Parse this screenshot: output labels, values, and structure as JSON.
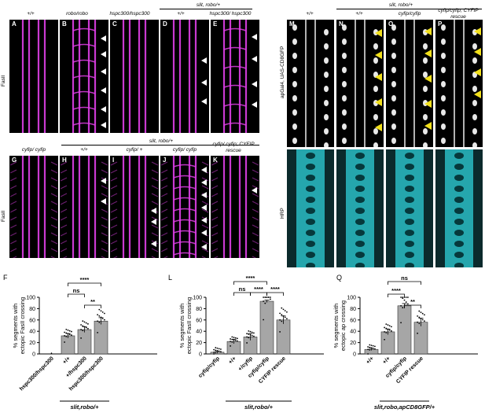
{
  "fig": {
    "top_left": {
      "header_slit_robo": "slit, robo/+",
      "cols": [
        "+/+",
        "robo/robo",
        "hspc300/hspc300",
        "+/+",
        "hspc300/ hspc300"
      ],
      "letters": [
        "A",
        "B",
        "C",
        "D",
        "E"
      ],
      "side_label": "FasII"
    },
    "mid_left": {
      "header_slit_robo": "slit, robo/+",
      "cols": [
        "cyfip/ cyfip",
        "+/+",
        "cyfip/ +",
        "cyfip/ cyfip",
        "cyfip/ cyfip; CYFIP rescue"
      ],
      "letters": [
        "G",
        "H",
        "I",
        "J",
        "K"
      ],
      "side_label": "FasII"
    },
    "right": {
      "header_slit_robo": "slit, robo/+",
      "cols": [
        "+/+",
        "+/+",
        "cyfip/cyfip",
        "cyfip/cyfip; CYFIP rescue"
      ],
      "letters": [
        "M",
        "N",
        "O",
        "P"
      ],
      "side_label_top": "apGal4, UAS-CD8GFP",
      "side_label_bottom": "HRP"
    },
    "colors": {
      "magenta": "#e040e8",
      "cyan": "#2fd0d8",
      "arrow_yellow": "#f2e01b",
      "bar_fill": "#a6a6a6"
    }
  },
  "chart_data": [
    {
      "panel": "F",
      "type": "bar",
      "ylabel": "% segments with ectopic FasII crossing",
      "ylim": [
        0,
        100
      ],
      "yticks": [
        0,
        20,
        40,
        60,
        80,
        100
      ],
      "categories": [
        "hspc300/hspc300",
        "+/+",
        "+/hspc300",
        "hspc300/hspc300"
      ],
      "values": [
        0,
        32,
        43,
        58
      ],
      "errors": [
        0,
        4,
        5,
        6
      ],
      "group_label": "slit,robo/+",
      "significance": [
        {
          "from": 1,
          "to": 3,
          "label": "****"
        },
        {
          "from": 1,
          "to": 2,
          "label": "ns"
        },
        {
          "from": 2,
          "to": 3,
          "label": "**"
        }
      ]
    },
    {
      "panel": "L",
      "type": "bar",
      "ylabel": "% segments with ectopic FasII crossing",
      "ylim": [
        0,
        100
      ],
      "yticks": [
        0,
        20,
        40,
        60,
        80,
        100
      ],
      "categories": [
        "cyfip/cyfip",
        "+/+",
        "+/cyfip",
        "cyfip/cyfip",
        "CYFIP rescue"
      ],
      "values": [
        3,
        22,
        30,
        93,
        60
      ],
      "errors": [
        2,
        4,
        6,
        2,
        7
      ],
      "group_label": "slit,robo/+",
      "significance": [
        {
          "from": 1,
          "to": 3,
          "label": "****"
        },
        {
          "from": 1,
          "to": 2,
          "label": "ns"
        },
        {
          "from": 2,
          "to": 3,
          "label": "****"
        },
        {
          "from": 3,
          "to": 4,
          "label": "****"
        }
      ]
    },
    {
      "panel": "Q",
      "type": "bar",
      "ylabel": "% segments with ectopic ap crossing",
      "ylim": [
        0,
        100
      ],
      "yticks": [
        0,
        20,
        40,
        60,
        80,
        100
      ],
      "categories": [
        "+/+",
        "+/+",
        "cyfip/cyfip",
        "CYFIP rescue"
      ],
      "values": [
        8,
        39,
        85,
        56
      ],
      "errors": [
        2,
        5,
        4,
        7
      ],
      "group_label": "slit,robo,apCD8GFP/+",
      "significance": [
        {
          "from": 1,
          "to": 3,
          "label": "ns"
        },
        {
          "from": 1,
          "to": 2,
          "label": "****"
        },
        {
          "from": 2,
          "to": 3,
          "label": "**"
        }
      ]
    }
  ]
}
